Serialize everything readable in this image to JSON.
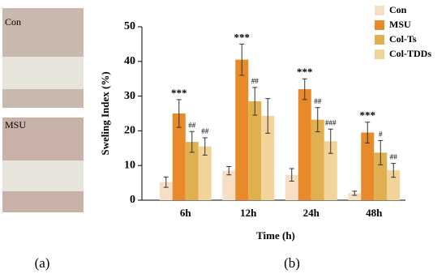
{
  "photos": [
    {
      "label": "Con"
    },
    {
      "label": "MSU"
    }
  ],
  "panel_labels": [
    "(a)",
    "(b)"
  ],
  "chart_data": {
    "type": "bar",
    "y_label": "Sweling Index (%)",
    "x_label": "Time (h)",
    "categories": [
      "6h",
      "12h",
      "24h",
      "48h"
    ],
    "series": [
      {
        "name": "Con",
        "color": "#f6dfc5",
        "values": [
          5.2,
          8.5,
          7.3,
          2.0
        ],
        "errors": [
          1.5,
          1.2,
          1.8,
          0.6
        ],
        "labels": [
          null,
          null,
          null,
          null
        ]
      },
      {
        "name": "MSU",
        "color": "#e8892a",
        "values": [
          25,
          40.5,
          32,
          19.5
        ],
        "errors": [
          4,
          4.5,
          3,
          3
        ],
        "labels": [
          "***",
          "***",
          "***",
          "***"
        ]
      },
      {
        "name": "Col-Ts",
        "color": "#e0b050",
        "values": [
          16.8,
          28.5,
          23.2,
          13.7
        ],
        "errors": [
          3,
          4,
          3.5,
          3.5
        ],
        "labels": [
          "##",
          "##",
          "##",
          "#"
        ]
      },
      {
        "name": "Col-TDDs",
        "color": "#f2d49b",
        "values": [
          15.5,
          24.3,
          17,
          8.6
        ],
        "errors": [
          2.5,
          5,
          3.5,
          2
        ],
        "labels": [
          "##",
          null,
          "###",
          "##"
        ]
      }
    ],
    "ylim": [
      0,
      50
    ],
    "yticks": [
      0,
      10,
      20,
      30,
      40,
      50
    ],
    "grid": false
  }
}
